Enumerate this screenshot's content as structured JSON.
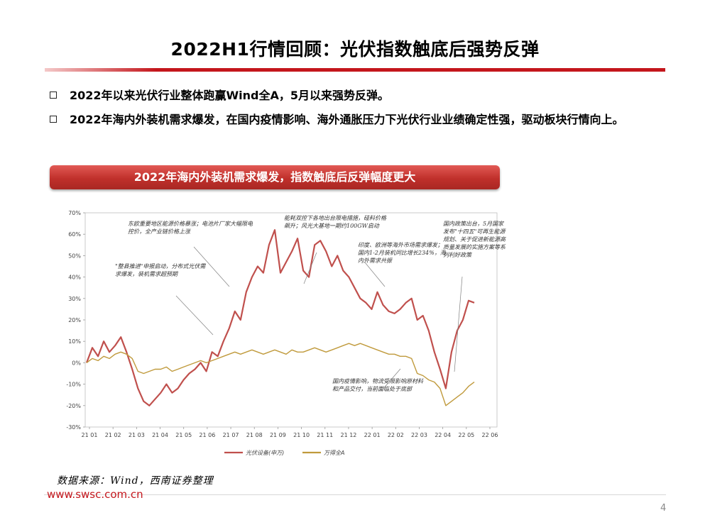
{
  "slide": {
    "title": "2022H1行情回顾：光伏指数触底后强势反弹",
    "bullets": [
      "2022年以来光伏行业整体跑赢Wind全A，5月以来强势反弹。",
      "2022年海内外装机需求爆发，在国内疫情影响、海外通胀压力下光伏行业业绩确定性强，驱动板块行情向上。"
    ],
    "banner": "2022年海内外装机需求爆发，指数触底后反弹幅度更大",
    "source": "数据来源：Wind，西南证券整理",
    "url": "www.swsc.com.cn",
    "page_number": "4"
  },
  "colors": {
    "accent": "#c4161c",
    "pv_series": "#c0504d",
    "wind_series": "#c09a3c"
  },
  "chart_data": {
    "type": "line",
    "ylim": [
      -30,
      70
    ],
    "y_ticks": [
      "-30%",
      "-20%",
      "-10%",
      "0%",
      "10%",
      "20%",
      "30%",
      "40%",
      "50%",
      "60%",
      "70%"
    ],
    "x_ticks": [
      "21 01",
      "21 02",
      "21 03",
      "21 04",
      "21 05",
      "21 06",
      "21 07",
      "21 08",
      "21 09",
      "21 10",
      "21 11",
      "21 12",
      "22 01",
      "22 02",
      "22 03",
      "22 04",
      "22 05",
      "22 06"
    ],
    "legend_position": "bottom",
    "series": [
      {
        "name": "光伏设备(申万)",
        "color": "#c0504d",
        "values": [
          0,
          7,
          3,
          10,
          5,
          8,
          12,
          5,
          -3,
          -12,
          -18,
          -20,
          -17,
          -14,
          -10,
          -14,
          -12,
          -8,
          -5,
          -3,
          0,
          -4,
          5,
          3,
          10,
          16,
          24,
          20,
          33,
          40,
          45,
          42,
          55,
          62,
          42,
          47,
          52,
          58,
          43,
          40,
          55,
          57,
          52,
          45,
          50,
          43,
          40,
          35,
          30,
          28,
          25,
          33,
          27,
          24,
          23,
          25,
          28,
          30,
          20,
          22,
          15,
          5,
          -3,
          -12,
          5,
          15,
          20,
          29,
          28
        ]
      },
      {
        "name": "万得全A",
        "color": "#c09a3c",
        "values": [
          0,
          2,
          1,
          3,
          2,
          4,
          5,
          4,
          2,
          -4,
          -5,
          -4,
          -3,
          -3,
          -2,
          -4,
          -3,
          -2,
          -1,
          0,
          1,
          0,
          1,
          2,
          3,
          4,
          5,
          4,
          5,
          6,
          5,
          4,
          5,
          6,
          5,
          4,
          6,
          5,
          5,
          6,
          7,
          6,
          5,
          6,
          7,
          8,
          9,
          8,
          9,
          8,
          7,
          6,
          5,
          4,
          4,
          3,
          3,
          2,
          -5,
          -6,
          -8,
          -9,
          -12,
          -20,
          -18,
          -16,
          -14,
          -11,
          -9
        ]
      }
    ],
    "annotations": [
      "东欧重要地区能源价格暴涨；电池片厂家大幅限电控价，全产业链价格上涨",
      "\"整县推进\"申报启动，分布式光伏需求爆发，装机需求超预期",
      "能耗双控下各地出台限电措施，硅料价格飙升；风光大基地一期约100GW启动",
      "印度、欧洲等海外市场需求爆发；国内1-2月装机同比增长234%，海内外需求共振",
      "国内疫情影响，物流受限影响原材料和产品交付，当前面临处于底部",
      "国内政策出台，5月国家发布\"十四五\"可再生能源规划、关于促进新能源高质量发展的实施方案等系列利好政策"
    ]
  }
}
